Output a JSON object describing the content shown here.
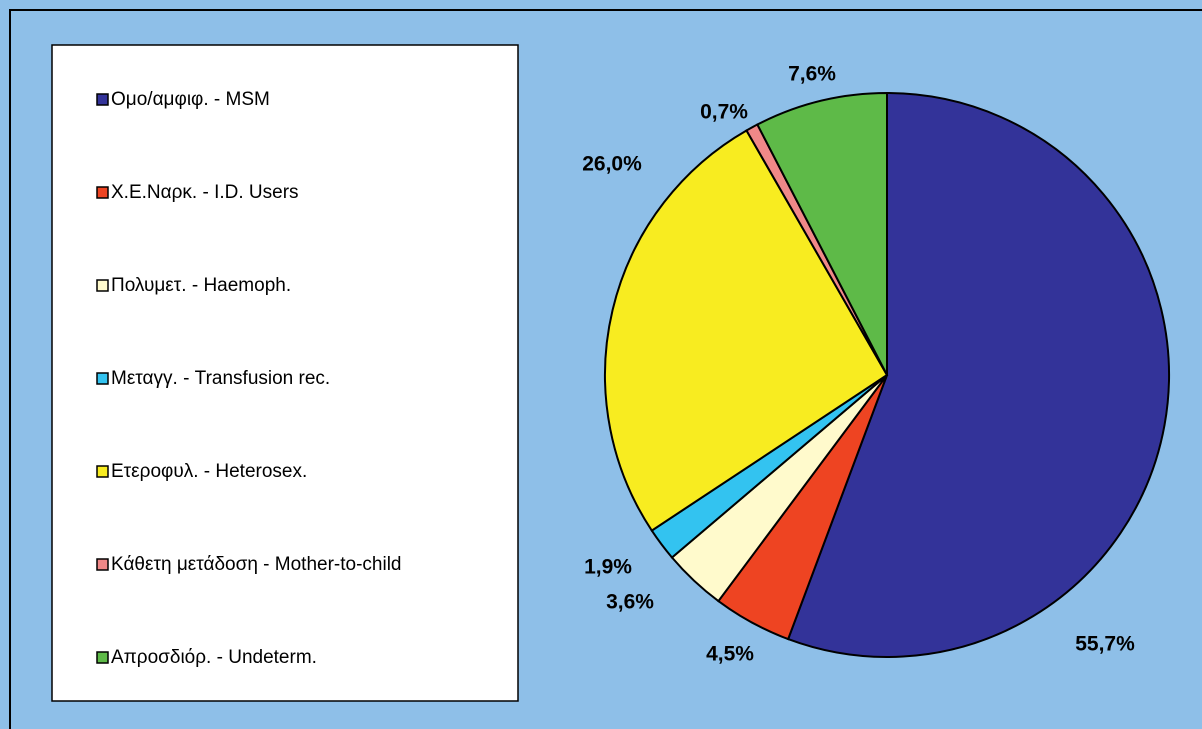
{
  "chart_data": {
    "type": "pie",
    "categories": [
      "Ομο/αμφιφ. - MSM",
      "Χ.Ε.Ναρκ. - I.D. Users",
      "Πολυμετ. - Haemoph.",
      "Μεταγγ. - Transfusion rec.",
      "Ετεροφυλ. - Heterosex.",
      "Κάθετη μετάδοση - Mother-to-child",
      "Απροσδιόρ. - Undeterm."
    ],
    "values": [
      55.7,
      4.5,
      3.6,
      1.9,
      26.0,
      0.7,
      7.6
    ],
    "value_labels": [
      "55,7%",
      "4,5%",
      "3,6%",
      "1,9%",
      "26,0%",
      "0,7%",
      "7,6%"
    ],
    "colors": [
      "#333399",
      "#EE4422",
      "#FFFACC",
      "#33C3F0",
      "#F8EC20",
      "#F08888",
      "#5EBA48"
    ],
    "legend": "left"
  }
}
